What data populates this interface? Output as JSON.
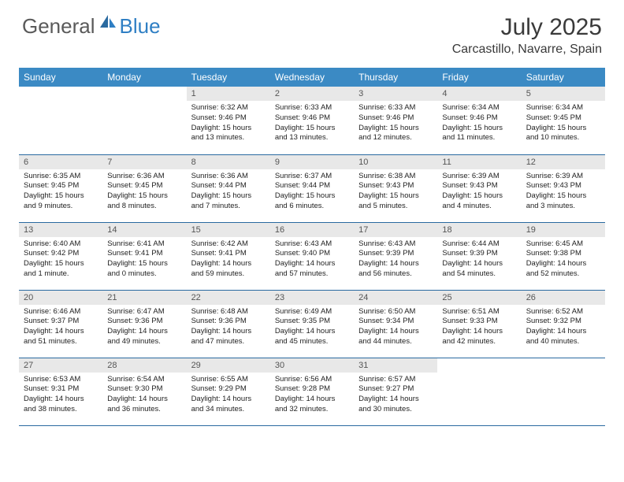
{
  "logo": {
    "general": "General",
    "blue": "Blue"
  },
  "title": "July 2025",
  "location": "Carcastillo, Navarre, Spain",
  "colors": {
    "header_bg": "#3b8ac4",
    "header_text": "#ffffff",
    "daynum_bg": "#e8e8e8",
    "border": "#2a6aa0",
    "logo_gray": "#5a5a5a",
    "logo_blue": "#2f7fc4"
  },
  "dayNames": [
    "Sunday",
    "Monday",
    "Tuesday",
    "Wednesday",
    "Thursday",
    "Friday",
    "Saturday"
  ],
  "weeks": [
    [
      null,
      null,
      {
        "n": "1",
        "sr": "6:32 AM",
        "ss": "9:46 PM",
        "dl": "15 hours and 13 minutes."
      },
      {
        "n": "2",
        "sr": "6:33 AM",
        "ss": "9:46 PM",
        "dl": "15 hours and 13 minutes."
      },
      {
        "n": "3",
        "sr": "6:33 AM",
        "ss": "9:46 PM",
        "dl": "15 hours and 12 minutes."
      },
      {
        "n": "4",
        "sr": "6:34 AM",
        "ss": "9:46 PM",
        "dl": "15 hours and 11 minutes."
      },
      {
        "n": "5",
        "sr": "6:34 AM",
        "ss": "9:45 PM",
        "dl": "15 hours and 10 minutes."
      }
    ],
    [
      {
        "n": "6",
        "sr": "6:35 AM",
        "ss": "9:45 PM",
        "dl": "15 hours and 9 minutes."
      },
      {
        "n": "7",
        "sr": "6:36 AM",
        "ss": "9:45 PM",
        "dl": "15 hours and 8 minutes."
      },
      {
        "n": "8",
        "sr": "6:36 AM",
        "ss": "9:44 PM",
        "dl": "15 hours and 7 minutes."
      },
      {
        "n": "9",
        "sr": "6:37 AM",
        "ss": "9:44 PM",
        "dl": "15 hours and 6 minutes."
      },
      {
        "n": "10",
        "sr": "6:38 AM",
        "ss": "9:43 PM",
        "dl": "15 hours and 5 minutes."
      },
      {
        "n": "11",
        "sr": "6:39 AM",
        "ss": "9:43 PM",
        "dl": "15 hours and 4 minutes."
      },
      {
        "n": "12",
        "sr": "6:39 AM",
        "ss": "9:43 PM",
        "dl": "15 hours and 3 minutes."
      }
    ],
    [
      {
        "n": "13",
        "sr": "6:40 AM",
        "ss": "9:42 PM",
        "dl": "15 hours and 1 minute."
      },
      {
        "n": "14",
        "sr": "6:41 AM",
        "ss": "9:41 PM",
        "dl": "15 hours and 0 minutes."
      },
      {
        "n": "15",
        "sr": "6:42 AM",
        "ss": "9:41 PM",
        "dl": "14 hours and 59 minutes."
      },
      {
        "n": "16",
        "sr": "6:43 AM",
        "ss": "9:40 PM",
        "dl": "14 hours and 57 minutes."
      },
      {
        "n": "17",
        "sr": "6:43 AM",
        "ss": "9:39 PM",
        "dl": "14 hours and 56 minutes."
      },
      {
        "n": "18",
        "sr": "6:44 AM",
        "ss": "9:39 PM",
        "dl": "14 hours and 54 minutes."
      },
      {
        "n": "19",
        "sr": "6:45 AM",
        "ss": "9:38 PM",
        "dl": "14 hours and 52 minutes."
      }
    ],
    [
      {
        "n": "20",
        "sr": "6:46 AM",
        "ss": "9:37 PM",
        "dl": "14 hours and 51 minutes."
      },
      {
        "n": "21",
        "sr": "6:47 AM",
        "ss": "9:36 PM",
        "dl": "14 hours and 49 minutes."
      },
      {
        "n": "22",
        "sr": "6:48 AM",
        "ss": "9:36 PM",
        "dl": "14 hours and 47 minutes."
      },
      {
        "n": "23",
        "sr": "6:49 AM",
        "ss": "9:35 PM",
        "dl": "14 hours and 45 minutes."
      },
      {
        "n": "24",
        "sr": "6:50 AM",
        "ss": "9:34 PM",
        "dl": "14 hours and 44 minutes."
      },
      {
        "n": "25",
        "sr": "6:51 AM",
        "ss": "9:33 PM",
        "dl": "14 hours and 42 minutes."
      },
      {
        "n": "26",
        "sr": "6:52 AM",
        "ss": "9:32 PM",
        "dl": "14 hours and 40 minutes."
      }
    ],
    [
      {
        "n": "27",
        "sr": "6:53 AM",
        "ss": "9:31 PM",
        "dl": "14 hours and 38 minutes."
      },
      {
        "n": "28",
        "sr": "6:54 AM",
        "ss": "9:30 PM",
        "dl": "14 hours and 36 minutes."
      },
      {
        "n": "29",
        "sr": "6:55 AM",
        "ss": "9:29 PM",
        "dl": "14 hours and 34 minutes."
      },
      {
        "n": "30",
        "sr": "6:56 AM",
        "ss": "9:28 PM",
        "dl": "14 hours and 32 minutes."
      },
      {
        "n": "31",
        "sr": "6:57 AM",
        "ss": "9:27 PM",
        "dl": "14 hours and 30 minutes."
      },
      null,
      null
    ]
  ],
  "labels": {
    "sunrise": "Sunrise:",
    "sunset": "Sunset:",
    "daylight": "Daylight:"
  }
}
